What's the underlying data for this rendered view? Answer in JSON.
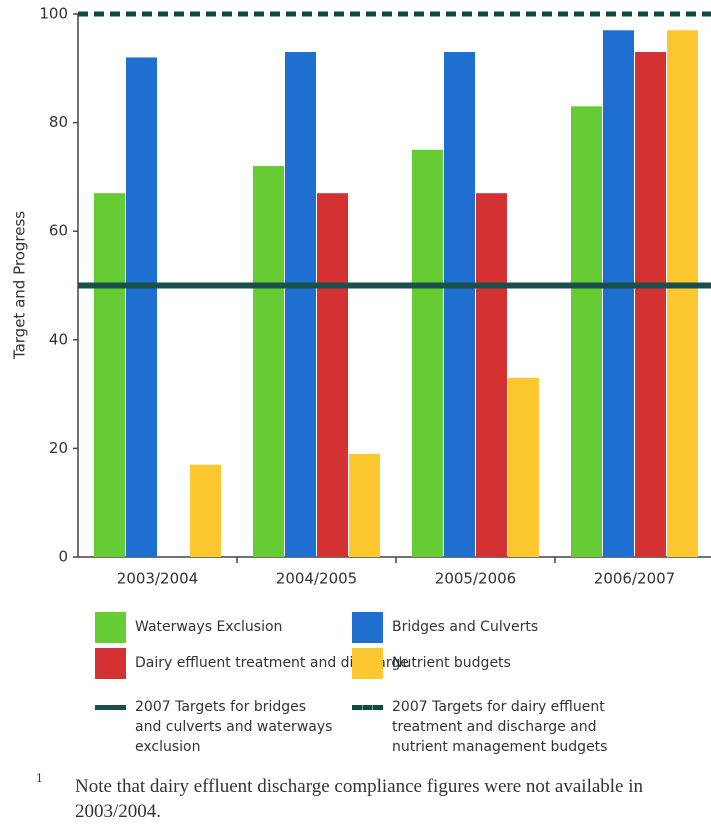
{
  "chart_data": {
    "type": "bar",
    "y_label": "Target and Progress",
    "categories": [
      "2003/2004",
      "2004/2005",
      "2005/2006",
      "2006/2007"
    ],
    "series": [
      {
        "name": "Waterways Exclusion",
        "color": "#66cc33",
        "values": [
          67,
          72,
          75,
          83
        ]
      },
      {
        "name": "Bridges and Culverts",
        "color": "#1e6fd0",
        "values": [
          92,
          93,
          93,
          97
        ]
      },
      {
        "name": "Dairy effluent treatment and discharge",
        "color": "#d43232",
        "values": [
          null,
          67,
          67,
          93
        ]
      },
      {
        "name": "Nutrient budgets",
        "color": "#fdc82f",
        "values": [
          17,
          19,
          33,
          97
        ]
      }
    ],
    "targets": [
      {
        "name": "2007 Targets for bridges and culverts and waterways exclusion",
        "value": 50,
        "color": "#1b4f4c",
        "style": "solid"
      },
      {
        "name": "2007 Targets for dairy effluent treatment and discharge and nutrient management budgets",
        "value": 100,
        "color": "#0d4a40",
        "style": "dashed"
      }
    ],
    "ylim": [
      0,
      100
    ],
    "yticks": [
      0,
      20,
      40,
      60,
      80,
      100
    ],
    "footnote_marker": "1",
    "footnote": "Note that dairy effluent discharge compliance figures were not available in 2003/2004."
  }
}
